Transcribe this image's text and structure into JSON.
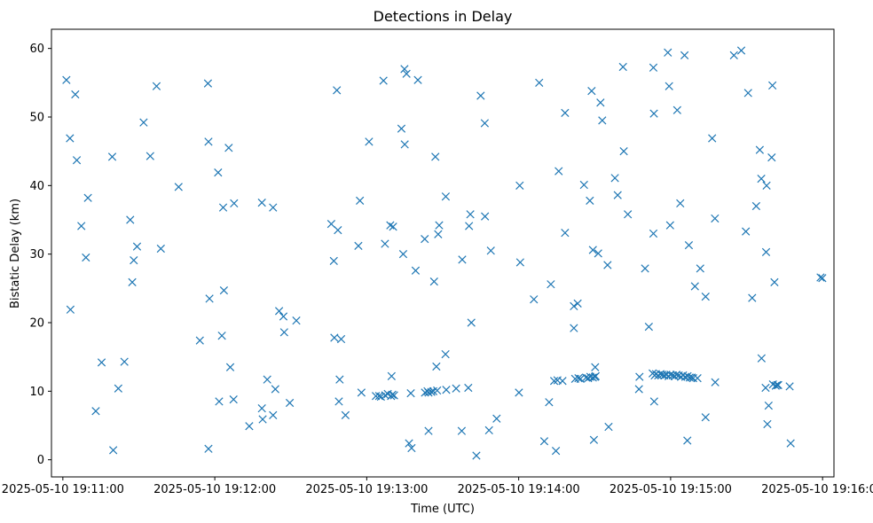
{
  "chart_data": {
    "type": "scatter",
    "title": "Detections in Delay",
    "xlabel": "Time (UTC)",
    "ylabel": "Bistatic Delay (km)",
    "x_unit": "seconds since 2025-05-10 19:11:00",
    "xlim": [
      -4.5,
      304.5
    ],
    "ylim": [
      -2.5,
      62.8
    ],
    "x_ticks": [
      {
        "value": 0,
        "label": "2025-05-10 19:11:00"
      },
      {
        "value": 60,
        "label": "2025-05-10 19:12:00"
      },
      {
        "value": 120,
        "label": "2025-05-10 19:13:00"
      },
      {
        "value": 180,
        "label": "2025-05-10 19:14:00"
      },
      {
        "value": 240,
        "label": "2025-05-10 19:15:00"
      },
      {
        "value": 300,
        "label": "2025-05-10 19:16:00"
      }
    ],
    "y_ticks": [
      {
        "value": 0,
        "label": "0"
      },
      {
        "value": 10,
        "label": "10"
      },
      {
        "value": 20,
        "label": "20"
      },
      {
        "value": 30,
        "label": "30"
      },
      {
        "value": 40,
        "label": "40"
      },
      {
        "value": 50,
        "label": "50"
      },
      {
        "value": 60,
        "label": "60"
      }
    ],
    "marker": "x",
    "color": "#1f77b4",
    "grid": false,
    "series": [
      {
        "name": "detections",
        "points": [
          [
            1.4,
            55.4
          ],
          [
            2.8,
            46.9
          ],
          [
            3.0,
            21.9
          ],
          [
            4.9,
            53.3
          ],
          [
            5.5,
            43.7
          ],
          [
            7.3,
            34.1
          ],
          [
            9.1,
            29.5
          ],
          [
            9.9,
            38.2
          ],
          [
            13.0,
            7.1
          ],
          [
            15.3,
            14.2
          ],
          [
            19.5,
            44.2
          ],
          [
            19.9,
            1.4
          ],
          [
            21.9,
            10.4
          ],
          [
            24.3,
            14.3
          ],
          [
            26.6,
            35.0
          ],
          [
            27.4,
            25.9
          ],
          [
            28.0,
            29.1
          ],
          [
            29.3,
            31.1
          ],
          [
            31.9,
            49.2
          ],
          [
            34.5,
            44.3
          ],
          [
            37.0,
            54.5
          ],
          [
            38.7,
            30.8
          ],
          [
            45.7,
            39.8
          ],
          [
            54.1,
            17.4
          ],
          [
            57.3,
            54.9
          ],
          [
            57.5,
            1.6
          ],
          [
            57.5,
            46.4
          ],
          [
            57.9,
            23.5
          ],
          [
            61.3,
            41.9
          ],
          [
            61.7,
            8.5
          ],
          [
            62.8,
            18.1
          ],
          [
            63.3,
            36.8
          ],
          [
            63.6,
            24.7
          ],
          [
            65.5,
            45.5
          ],
          [
            66.1,
            13.5
          ],
          [
            67.6,
            37.4
          ],
          [
            67.4,
            8.8
          ],
          [
            73.6,
            4.9
          ],
          [
            78.6,
            7.5
          ],
          [
            78.6,
            37.5
          ],
          [
            78.9,
            5.9
          ],
          [
            80.7,
            11.7
          ],
          [
            83.0,
            36.8
          ],
          [
            83.0,
            6.5
          ],
          [
            83.9,
            10.3
          ],
          [
            85.4,
            21.7
          ],
          [
            87.1,
            20.9
          ],
          [
            87.4,
            18.6
          ],
          [
            89.6,
            8.3
          ],
          [
            92.2,
            20.3
          ],
          [
            106.0,
            34.4
          ],
          [
            107.0,
            29.0
          ],
          [
            107.2,
            17.8
          ],
          [
            108.2,
            53.9
          ],
          [
            108.6,
            33.5
          ],
          [
            109.0,
            8.5
          ],
          [
            109.3,
            11.7
          ],
          [
            109.9,
            17.6
          ],
          [
            111.6,
            6.5
          ],
          [
            116.7,
            31.2
          ],
          [
            117.3,
            37.8
          ],
          [
            117.9,
            9.8
          ],
          [
            120.9,
            46.4
          ],
          [
            123.6,
            9.3
          ],
          [
            124.9,
            9.3
          ],
          [
            125.6,
            9.2
          ],
          [
            126.6,
            55.3
          ],
          [
            127.2,
            31.5
          ],
          [
            127.3,
            9.4
          ],
          [
            128.3,
            9.6
          ],
          [
            129.3,
            34.2
          ],
          [
            129.6,
            9.3
          ],
          [
            129.8,
            12.2
          ],
          [
            130.1,
            9.5
          ],
          [
            130.4,
            34.0
          ],
          [
            130.8,
            9.4
          ],
          [
            133.7,
            48.3
          ],
          [
            134.4,
            30.0
          ],
          [
            134.9,
            57.0
          ],
          [
            135.0,
            46.0
          ],
          [
            135.7,
            56.3
          ],
          [
            136.7,
            2.4
          ],
          [
            137.4,
            9.7
          ],
          [
            137.7,
            1.7
          ],
          [
            139.3,
            27.6
          ],
          [
            140.2,
            55.4
          ],
          [
            142.9,
            32.2
          ],
          [
            143.0,
            9.8
          ],
          [
            144.0,
            10.0
          ],
          [
            144.4,
            4.2
          ],
          [
            144.4,
            9.8
          ],
          [
            145.5,
            9.9
          ],
          [
            146.3,
            10.0
          ],
          [
            146.6,
            26.0
          ],
          [
            147.1,
            44.2
          ],
          [
            147.5,
            13.6
          ],
          [
            147.8,
            10.1
          ],
          [
            148.2,
            32.9
          ],
          [
            148.6,
            34.2
          ],
          [
            151.1,
            15.4
          ],
          [
            151.2,
            38.4
          ],
          [
            151.4,
            10.2
          ],
          [
            155.3,
            10.4
          ],
          [
            157.7,
            29.2
          ],
          [
            157.5,
            4.2
          ],
          [
            160.1,
            10.5
          ],
          [
            160.4,
            34.1
          ],
          [
            160.9,
            35.8
          ],
          [
            161.3,
            20.0
          ],
          [
            163.3,
            0.6
          ],
          [
            165.0,
            53.1
          ],
          [
            166.6,
            49.1
          ],
          [
            166.7,
            35.5
          ],
          [
            168.3,
            4.3
          ],
          [
            169.0,
            30.5
          ],
          [
            171.3,
            6.0
          ],
          [
            180.1,
            9.8
          ],
          [
            180.4,
            40.0
          ],
          [
            180.6,
            28.8
          ],
          [
            186.0,
            23.4
          ],
          [
            188.1,
            55.0
          ],
          [
            190.1,
            2.7
          ],
          [
            192.0,
            8.4
          ],
          [
            192.7,
            25.6
          ],
          [
            194.0,
            11.5
          ],
          [
            194.7,
            1.3
          ],
          [
            195.3,
            11.6
          ],
          [
            195.8,
            42.1
          ],
          [
            197.3,
            11.5
          ],
          [
            198.3,
            33.1
          ],
          [
            198.3,
            50.6
          ],
          [
            201.8,
            22.4
          ],
          [
            201.8,
            19.2
          ],
          [
            202.3,
            11.8
          ],
          [
            203.3,
            22.8
          ],
          [
            203.6,
            11.9
          ],
          [
            204.4,
            11.8
          ],
          [
            205.8,
            40.1
          ],
          [
            206.6,
            12.0
          ],
          [
            207.4,
            11.9
          ],
          [
            208.1,
            37.8
          ],
          [
            208.3,
            12.1
          ],
          [
            208.8,
            53.8
          ],
          [
            209.3,
            12.0
          ],
          [
            209.3,
            30.6
          ],
          [
            209.7,
            2.9
          ],
          [
            210.1,
            12.1
          ],
          [
            210.2,
            13.5
          ],
          [
            210.4,
            12.2
          ],
          [
            211.4,
            30.1
          ],
          [
            212.3,
            52.1
          ],
          [
            213.0,
            49.5
          ],
          [
            215.1,
            28.4
          ],
          [
            215.5,
            4.8
          ],
          [
            218.0,
            41.1
          ],
          [
            219.1,
            38.6
          ],
          [
            221.2,
            57.3
          ],
          [
            221.5,
            45.0
          ],
          [
            223.1,
            35.8
          ],
          [
            227.5,
            10.3
          ],
          [
            227.7,
            12.1
          ],
          [
            229.9,
            27.9
          ],
          [
            231.4,
            19.4
          ],
          [
            232.9,
            12.6
          ],
          [
            233.2,
            57.2
          ],
          [
            233.4,
            50.5
          ],
          [
            233.2,
            33.0
          ],
          [
            233.5,
            8.5
          ],
          [
            233.7,
            12.3
          ],
          [
            234.2,
            12.5
          ],
          [
            235.1,
            12.3
          ],
          [
            236.0,
            12.5
          ],
          [
            236.7,
            12.4
          ],
          [
            237.5,
            12.3
          ],
          [
            238.3,
            12.4
          ],
          [
            238.9,
            59.4
          ],
          [
            239.4,
            54.5
          ],
          [
            239.2,
            12.2
          ],
          [
            239.8,
            34.2
          ],
          [
            240.0,
            12.4
          ],
          [
            240.9,
            12.3
          ],
          [
            241.6,
            12.2
          ],
          [
            242.3,
            12.4
          ],
          [
            242.6,
            51.0
          ],
          [
            243.2,
            12.3
          ],
          [
            243.8,
            37.4
          ],
          [
            244.1,
            12.1
          ],
          [
            244.9,
            12.3
          ],
          [
            245.5,
            59.0
          ],
          [
            245.8,
            12.1
          ],
          [
            246.7,
            12.2
          ],
          [
            246.6,
            2.8
          ],
          [
            247.2,
            31.3
          ],
          [
            247.5,
            12.0
          ],
          [
            248.3,
            12.0
          ],
          [
            248.9,
            11.9
          ],
          [
            249.6,
            25.3
          ],
          [
            250.6,
            11.9
          ],
          [
            251.7,
            27.9
          ],
          [
            253.8,
            23.8
          ],
          [
            253.8,
            6.2
          ],
          [
            256.4,
            46.9
          ],
          [
            257.6,
            11.3
          ],
          [
            257.5,
            35.2
          ],
          [
            265.0,
            59.0
          ],
          [
            267.9,
            59.7
          ],
          [
            269.7,
            33.3
          ],
          [
            270.6,
            53.5
          ],
          [
            272.2,
            23.6
          ],
          [
            273.8,
            37.0
          ],
          [
            275.2,
            45.2
          ],
          [
            275.8,
            41.0
          ],
          [
            275.9,
            14.8
          ],
          [
            277.5,
            10.5
          ],
          [
            277.7,
            30.3
          ],
          [
            277.9,
            40.0
          ],
          [
            278.2,
            5.2
          ],
          [
            278.7,
            7.9
          ],
          [
            279.9,
            44.1
          ],
          [
            280.2,
            54.6
          ],
          [
            280.4,
            11.0
          ],
          [
            281.0,
            25.9
          ],
          [
            281.5,
            10.8
          ],
          [
            282.1,
            10.9
          ],
          [
            282.5,
            10.9
          ],
          [
            287.0,
            10.7
          ],
          [
            287.4,
            2.4
          ],
          [
            299.2,
            26.6
          ],
          [
            299.9,
            26.5
          ]
        ]
      }
    ]
  }
}
